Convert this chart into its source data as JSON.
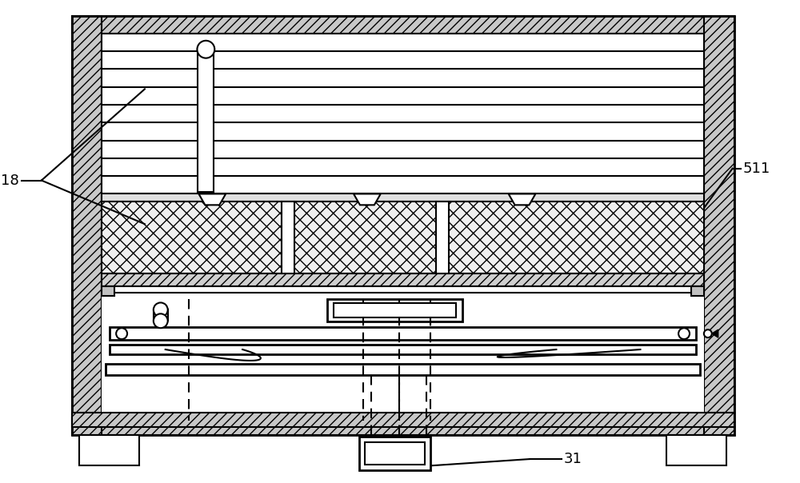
{
  "fig_width": 10.0,
  "fig_height": 6.04,
  "dpi": 100,
  "bg_color": "#ffffff",
  "lc": "#000000",
  "label_18": "18",
  "label_511": "511",
  "label_31": "31"
}
